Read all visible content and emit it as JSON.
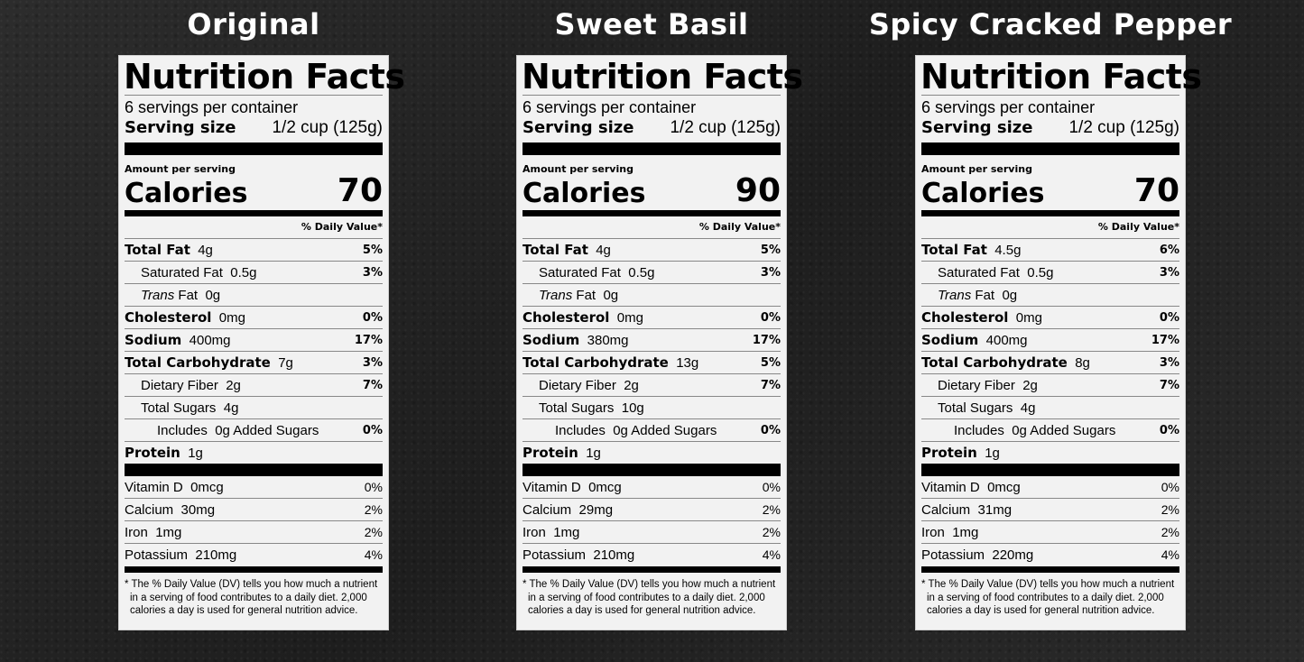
{
  "labels": [
    {
      "variant": "Original",
      "title": "Nutrition Facts",
      "servings": "6 servings per container",
      "serving_size_label": "Serving size",
      "serving_size_value": "1/2 cup (125g)",
      "amount_per_serving": "Amount per serving",
      "calories_label": "Calories",
      "calories": "70",
      "dv_header": "% Daily Value*",
      "total_fat": {
        "label": "Total Fat",
        "amount": "4g",
        "dv": "5%"
      },
      "saturated_fat": {
        "label": "Saturated Fat",
        "amount": "0.5g",
        "dv": "3%"
      },
      "trans_fat": {
        "label_italic": "Trans",
        "label": "Fat",
        "amount": "0g"
      },
      "cholesterol": {
        "label": "Cholesterol",
        "amount": "0mg",
        "dv": "0%"
      },
      "sodium": {
        "label": "Sodium",
        "amount": "400mg",
        "dv": "17%"
      },
      "total_carb": {
        "label": "Total Carbohydrate",
        "amount": "7g",
        "dv": "3%"
      },
      "fiber": {
        "label": "Dietary Fiber",
        "amount": "2g",
        "dv": "7%"
      },
      "sugars": {
        "label": "Total Sugars",
        "amount": "4g"
      },
      "added_sugars": {
        "label": "Includes",
        "amount": "0g",
        "suffix": "Added Sugars",
        "dv": "0%"
      },
      "protein": {
        "label": "Protein",
        "amount": "1g"
      },
      "vitamin_d": {
        "label": "Vitamin D",
        "amount": "0mcg",
        "dv": "0%"
      },
      "calcium": {
        "label": "Calcium",
        "amount": "30mg",
        "dv": "2%"
      },
      "iron": {
        "label": "Iron",
        "amount": "1mg",
        "dv": "2%"
      },
      "potassium": {
        "label": "Potassium",
        "amount": "210mg",
        "dv": "4%"
      },
      "footnote": "* The % Daily Value (DV) tells you how much a nutrient in a serving of food contributes to a daily diet. 2,000 calories a day is used for general nutrition advice."
    },
    {
      "variant": "Sweet Basil",
      "title": "Nutrition Facts",
      "servings": "6 servings per container",
      "serving_size_label": "Serving size",
      "serving_size_value": "1/2 cup (125g)",
      "amount_per_serving": "Amount per serving",
      "calories_label": "Calories",
      "calories": "90",
      "dv_header": "% Daily Value*",
      "total_fat": {
        "label": "Total Fat",
        "amount": "4g",
        "dv": "5%"
      },
      "saturated_fat": {
        "label": "Saturated Fat",
        "amount": "0.5g",
        "dv": "3%"
      },
      "trans_fat": {
        "label_italic": "Trans",
        "label": "Fat",
        "amount": "0g"
      },
      "cholesterol": {
        "label": "Cholesterol",
        "amount": "0mg",
        "dv": "0%"
      },
      "sodium": {
        "label": "Sodium",
        "amount": "380mg",
        "dv": "17%"
      },
      "total_carb": {
        "label": "Total Carbohydrate",
        "amount": "13g",
        "dv": "5%"
      },
      "fiber": {
        "label": "Dietary Fiber",
        "amount": "2g",
        "dv": "7%"
      },
      "sugars": {
        "label": "Total Sugars",
        "amount": "10g"
      },
      "added_sugars": {
        "label": "Includes",
        "amount": "0g",
        "suffix": "Added Sugars",
        "dv": "0%"
      },
      "protein": {
        "label": "Protein",
        "amount": "1g"
      },
      "vitamin_d": {
        "label": "Vitamin D",
        "amount": "0mcg",
        "dv": "0%"
      },
      "calcium": {
        "label": "Calcium",
        "amount": "29mg",
        "dv": "2%"
      },
      "iron": {
        "label": "Iron",
        "amount": "1mg",
        "dv": "2%"
      },
      "potassium": {
        "label": "Potassium",
        "amount": "210mg",
        "dv": "4%"
      },
      "footnote": "* The % Daily Value (DV) tells you how much a nutrient in a serving of food contributes to a daily diet. 2,000 calories a day is used for general nutrition advice."
    },
    {
      "variant": "Spicy Cracked Pepper",
      "title": "Nutrition Facts",
      "servings": "6 servings per container",
      "serving_size_label": "Serving size",
      "serving_size_value": "1/2 cup (125g)",
      "amount_per_serving": "Amount per serving",
      "calories_label": "Calories",
      "calories": "70",
      "dv_header": "% Daily Value*",
      "total_fat": {
        "label": "Total Fat",
        "amount": "4.5g",
        "dv": "6%"
      },
      "saturated_fat": {
        "label": "Saturated Fat",
        "amount": "0.5g",
        "dv": "3%"
      },
      "trans_fat": {
        "label_italic": "Trans",
        "label": "Fat",
        "amount": "0g"
      },
      "cholesterol": {
        "label": "Cholesterol",
        "amount": "0mg",
        "dv": "0%"
      },
      "sodium": {
        "label": "Sodium",
        "amount": "400mg",
        "dv": "17%"
      },
      "total_carb": {
        "label": "Total Carbohydrate",
        "amount": "8g",
        "dv": "3%"
      },
      "fiber": {
        "label": "Dietary Fiber",
        "amount": "2g",
        "dv": "7%"
      },
      "sugars": {
        "label": "Total Sugars",
        "amount": "4g"
      },
      "added_sugars": {
        "label": "Includes",
        "amount": "0g",
        "suffix": "Added Sugars",
        "dv": "0%"
      },
      "protein": {
        "label": "Protein",
        "amount": "1g"
      },
      "vitamin_d": {
        "label": "Vitamin D",
        "amount": "0mcg",
        "dv": "0%"
      },
      "calcium": {
        "label": "Calcium",
        "amount": "31mg",
        "dv": "2%"
      },
      "iron": {
        "label": "Iron",
        "amount": "1mg",
        "dv": "2%"
      },
      "potassium": {
        "label": "Potassium",
        "amount": "220mg",
        "dv": "4%"
      },
      "footnote": "* The % Daily Value (DV) tells you how much a nutrient in a serving of food contributes to a daily diet. 2,000 calories a day is used for general nutrition advice."
    }
  ]
}
